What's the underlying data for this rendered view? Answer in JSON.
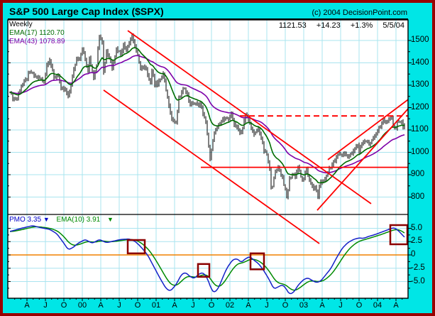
{
  "header": {
    "title": "S&P 500 Large Cap Index ($SPX)",
    "copyright": "(c) 2004 DecisionPoint.com"
  },
  "quote": {
    "last": "1121.53",
    "change": "+14.23",
    "pct": "+1.3%",
    "date": "5/5/04"
  },
  "main_panel": {
    "timeframe_label": "Weekly",
    "ema17_label": "EMA(17) 1120.70",
    "ema43_label": "EMA(43) 1078.89"
  },
  "pmo_panel": {
    "pmo_label": "PMO 3.35",
    "pmo_arrow": "▼",
    "ema10_label": "EMA(10) 3.91",
    "ema10_arrow": "▼"
  },
  "colors": {
    "background_cyan": "#00E6E6",
    "outer_border": "#990000",
    "plot_bg": "#FFFFFF",
    "grid": "#A9E4EF",
    "price_bars": "#000000",
    "ema17": "#006B00",
    "ema43": "#7D00A8",
    "pmo_line": "#1420C8",
    "pmo_ema10": "#008A00",
    "zero_line": "#F08000",
    "trendline": "#FF0000",
    "highlight_box": "#8B0000"
  },
  "x_axis": {
    "labels": [
      "A",
      "J",
      "O",
      "00",
      "A",
      "J",
      "O",
      "01",
      "A",
      "J",
      "O",
      "02",
      "A",
      "J",
      "O",
      "03",
      "A",
      "J",
      "O",
      "04",
      "A"
    ],
    "tick_weeks": [
      12,
      25,
      38,
      51,
      64,
      77,
      90,
      103,
      116,
      129,
      142,
      155,
      168,
      181,
      194,
      207,
      220,
      233,
      246,
      259,
      272
    ]
  },
  "chart_data": {
    "type": "line",
    "title": "S&P 500 Large Cap Index ($SPX) Weekly with EMA(17)/EMA(43) and PMO",
    "x_unit": "weeks_from_Jan_1999",
    "panels": [
      {
        "name": "price",
        "type": "ohlc",
        "ylim": [
          722,
          1592
        ],
        "y_ticks": [
          1500,
          1400,
          1300,
          1200,
          1100,
          1000,
          900,
          800
        ],
        "ema_periods": [
          17,
          43
        ],
        "ema17_last": 1120.7,
        "ema43_last": 1078.89,
        "last_close": 1121.53,
        "close_anchors": [
          [
            0,
            1275
          ],
          [
            2,
            1243
          ],
          [
            5,
            1240
          ],
          [
            8,
            1299
          ],
          [
            11,
            1320
          ],
          [
            13,
            1348
          ],
          [
            15,
            1357
          ],
          [
            18,
            1338
          ],
          [
            21,
            1330
          ],
          [
            24,
            1315
          ],
          [
            26,
            1390
          ],
          [
            28,
            1418
          ],
          [
            31,
            1330
          ],
          [
            34,
            1348
          ],
          [
            36,
            1282
          ],
          [
            39,
            1277
          ],
          [
            41,
            1247
          ],
          [
            43,
            1302
          ],
          [
            45,
            1370
          ],
          [
            47,
            1422
          ],
          [
            49,
            1417
          ],
          [
            51,
            1469
          ],
          [
            52,
            1441
          ],
          [
            55,
            1360
          ],
          [
            56,
            1424
          ],
          [
            59,
            1333
          ],
          [
            61,
            1395
          ],
          [
            63,
            1527
          ],
          [
            65,
            1499
          ],
          [
            66,
            1357
          ],
          [
            68,
            1452
          ],
          [
            71,
            1406
          ],
          [
            72,
            1378
          ],
          [
            75,
            1464
          ],
          [
            78,
            1441
          ],
          [
            80,
            1480
          ],
          [
            82,
            1463
          ],
          [
            84,
            1492
          ],
          [
            86,
            1521
          ],
          [
            89,
            1449
          ],
          [
            91,
            1409
          ],
          [
            92,
            1374
          ],
          [
            94,
            1380
          ],
          [
            96,
            1366
          ],
          [
            99,
            1315
          ],
          [
            100,
            1369
          ],
          [
            102,
            1305
          ],
          [
            103,
            1320
          ],
          [
            104,
            1298
          ],
          [
            105,
            1318
          ],
          [
            108,
            1349
          ],
          [
            111,
            1246
          ],
          [
            114,
            1151
          ],
          [
            115,
            1139
          ],
          [
            117,
            1128
          ],
          [
            119,
            1242
          ],
          [
            123,
            1292
          ],
          [
            124,
            1277
          ],
          [
            127,
            1215
          ],
          [
            129,
            1224
          ],
          [
            132,
            1211
          ],
          [
            134,
            1214
          ],
          [
            138,
            1134
          ],
          [
            139,
            1086
          ],
          [
            141,
            966
          ],
          [
            144,
            1092
          ],
          [
            146,
            1105
          ],
          [
            149,
            1138
          ],
          [
            152,
            1158
          ],
          [
            154,
            1145
          ],
          [
            156,
            1172
          ],
          [
            158,
            1127
          ],
          [
            161,
            1096
          ],
          [
            163,
            1089
          ],
          [
            166,
            1166
          ],
          [
            168,
            1147
          ],
          [
            170,
            1111
          ],
          [
            172,
            1076
          ],
          [
            175,
            1107
          ],
          [
            177,
            1067
          ],
          [
            179,
            1007
          ],
          [
            181,
            989
          ],
          [
            183,
            921
          ],
          [
            184,
            848
          ],
          [
            185,
            853
          ],
          [
            187,
            909
          ],
          [
            189,
            940
          ],
          [
            190,
            916
          ],
          [
            192,
            890
          ],
          [
            194,
            827
          ],
          [
            195,
            800
          ],
          [
            196,
            835
          ],
          [
            197,
            884
          ],
          [
            199,
            901
          ],
          [
            201,
            894
          ],
          [
            203,
            936
          ],
          [
            205,
            889
          ],
          [
            207,
            875
          ],
          [
            209,
            927
          ],
          [
            212,
            856
          ],
          [
            214,
            834
          ],
          [
            215,
            848
          ],
          [
            217,
            800
          ],
          [
            218,
            841
          ],
          [
            219,
            875
          ],
          [
            220,
            863
          ],
          [
            223,
            893
          ],
          [
            225,
            930
          ],
          [
            227,
            944
          ],
          [
            229,
            963
          ],
          [
            231,
            988
          ],
          [
            232,
            995
          ],
          [
            234,
            985
          ],
          [
            236,
            998
          ],
          [
            238,
            980
          ],
          [
            241,
            993
          ],
          [
            243,
            1021
          ],
          [
            245,
            1036
          ],
          [
            246,
            996
          ],
          [
            248,
            1038
          ],
          [
            251,
            1050
          ],
          [
            254,
            1035
          ],
          [
            256,
            1061
          ],
          [
            259,
            1095
          ],
          [
            260,
            1108
          ],
          [
            263,
            1141
          ],
          [
            264,
            1131
          ],
          [
            266,
            1145
          ],
          [
            269,
            1156
          ],
          [
            270,
            1120
          ],
          [
            272,
            1108
          ],
          [
            273,
            1141
          ],
          [
            275,
            1134
          ],
          [
            276,
            1140
          ],
          [
            277,
            1107
          ],
          [
            278,
            1121.53
          ]
        ],
        "trendlines": [
          {
            "name": "falling-channel-upper",
            "w1": 83,
            "p1": 1544,
            "w2": 254.5,
            "p2": 770,
            "style": "solid"
          },
          {
            "name": "falling-channel-lower",
            "w1": 66,
            "p1": 1278,
            "w2": 218,
            "p2": 592,
            "style": "solid"
          },
          {
            "name": "resistance-dashed",
            "w1": 162,
            "p1": 1163,
            "w2": 282,
            "p2": 1163,
            "style": "dashed"
          },
          {
            "name": "support-solid",
            "w1": 134.5,
            "p1": 933,
            "w2": 282,
            "p2": 933,
            "style": "solid"
          },
          {
            "name": "rising-channel-upper",
            "w1": 224,
            "p1": 967,
            "w2": 282,
            "p2": 1243,
            "style": "solid"
          },
          {
            "name": "rising-channel-lower",
            "w1": 216.5,
            "p1": 741,
            "w2": 282,
            "p2": 1205,
            "style": "solid"
          }
        ]
      },
      {
        "name": "pmo",
        "type": "line",
        "ylim": [
          -8.1,
          7.6
        ],
        "y_ticks": [
          5.0,
          2.5,
          0,
          -2.5,
          -5.0
        ],
        "pmo_last": 3.35,
        "ema10_last": 3.91,
        "zero_line": true,
        "pmo_anchors": [
          [
            0,
            4.4
          ],
          [
            8,
            5.0
          ],
          [
            16,
            5.5
          ],
          [
            22,
            5.1
          ],
          [
            28,
            4.8
          ],
          [
            33,
            4.0
          ],
          [
            38,
            2.2
          ],
          [
            41,
            1.0
          ],
          [
            44,
            1.3
          ],
          [
            48,
            2.2
          ],
          [
            53,
            2.9
          ],
          [
            58,
            2.2
          ],
          [
            63,
            2.9
          ],
          [
            68,
            2.3
          ],
          [
            73,
            2.6
          ],
          [
            78,
            2.9
          ],
          [
            84,
            3.0
          ],
          [
            88,
            2.6
          ],
          [
            92,
            1.6
          ],
          [
            97,
            0.0
          ],
          [
            101,
            -2.0
          ],
          [
            106,
            -4.5
          ],
          [
            110,
            -6.3
          ],
          [
            113,
            -6.8
          ],
          [
            117,
            -5.6
          ],
          [
            121,
            -3.6
          ],
          [
            124,
            -3.3
          ],
          [
            127,
            -4.1
          ],
          [
            130,
            -4.4
          ],
          [
            133,
            -3.6
          ],
          [
            136,
            -3.3
          ],
          [
            139,
            -4.3
          ],
          [
            142,
            -6.5
          ],
          [
            144,
            -7.1
          ],
          [
            147,
            -6.2
          ],
          [
            150,
            -4.2
          ],
          [
            153,
            -2.4
          ],
          [
            157,
            -0.9
          ],
          [
            160,
            -0.7
          ],
          [
            163,
            -1.4
          ],
          [
            166,
            -0.7
          ],
          [
            169,
            -0.3
          ],
          [
            172,
            -1.0
          ],
          [
            175,
            -1.6
          ],
          [
            178,
            -2.6
          ],
          [
            182,
            -4.3
          ],
          [
            186,
            -6.4
          ],
          [
            189,
            -6.0
          ],
          [
            192,
            -5.6
          ],
          [
            194,
            -6.1
          ],
          [
            197,
            -7.4
          ],
          [
            200,
            -7.0
          ],
          [
            203,
            -5.7
          ],
          [
            207,
            -4.6
          ],
          [
            210,
            -4.3
          ],
          [
            213,
            -4.8
          ],
          [
            216,
            -5.2
          ],
          [
            219,
            -4.9
          ],
          [
            222,
            -3.9
          ],
          [
            226,
            -2.6
          ],
          [
            230,
            -0.6
          ],
          [
            234,
            1.2
          ],
          [
            238,
            2.3
          ],
          [
            242,
            2.9
          ],
          [
            246,
            3.2
          ],
          [
            249,
            3.1
          ],
          [
            253,
            3.5
          ],
          [
            257,
            3.8
          ],
          [
            261,
            4.2
          ],
          [
            265,
            4.6
          ],
          [
            269,
            5.0
          ],
          [
            271,
            5.1
          ],
          [
            273,
            4.7
          ],
          [
            275,
            4.2
          ],
          [
            277,
            3.6
          ],
          [
            278,
            3.35
          ]
        ],
        "highlight_boxes": [
          {
            "w1": 83,
            "w2": 95,
            "v1": 0.3,
            "v2": 2.8
          },
          {
            "w1": 132.5,
            "w2": 140.5,
            "v1": -4.1,
            "v2": -1.7
          },
          {
            "w1": 169.5,
            "w2": 179,
            "v1": -2.7,
            "v2": 0.3
          },
          {
            "w1": 268,
            "w2": 280,
            "v1": 2.0,
            "v2": 5.6
          }
        ]
      }
    ]
  }
}
